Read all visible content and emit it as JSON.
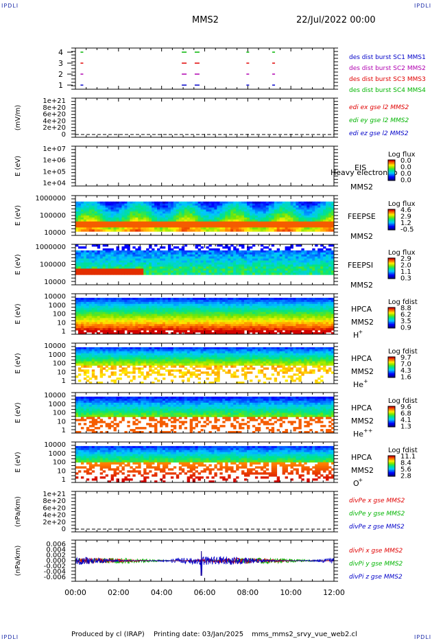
{
  "header": {
    "corner_tl": "IPDLI",
    "corner_tr": "IPDLI",
    "corner_bl": "IPDLI",
    "corner_br": "IPDLI",
    "spacecraft": "MMS2",
    "date": "22/Jul/2022 00:00"
  },
  "footer": {
    "producer": "Produced by cl (IRAP)",
    "printing_date": "Printing date: 03/Jan/2025",
    "filename": "mms_mms2_srvy_vue_web2.cl"
  },
  "colors": {
    "red": "#e00000",
    "green": "#00b400",
    "blue": "#0000c8",
    "magenta": "#b000b0",
    "label_blue": "#1020a0"
  },
  "chart_data": [
    {
      "type": "scatter",
      "panel": "burst",
      "yticks": [
        "4",
        "3",
        "2",
        "1"
      ],
      "legend": [
        {
          "label": "des dist burst SC1 MMS1",
          "color": "#0000c8"
        },
        {
          "label": "des dist burst SC2 MMS2",
          "color": "#b000b0"
        },
        {
          "label": "des dist burst SC3 MMS3",
          "color": "#e00000"
        },
        {
          "label": "des dist burst SC4 MMS4",
          "color": "#00b400"
        }
      ],
      "series": [
        {
          "level": 4,
          "color": "#00b400",
          "x_hours": [
            0.3,
            5.0,
            5.6,
            8.0,
            9.2
          ]
        },
        {
          "level": 3,
          "color": "#e00000",
          "x_hours": [
            0.3,
            5.0,
            5.6,
            8.0,
            9.2
          ]
        },
        {
          "level": 2,
          "color": "#b000b0",
          "x_hours": [
            0.3,
            5.0,
            5.6,
            8.0,
            9.2
          ]
        },
        {
          "level": 1,
          "color": "#0000c8",
          "x_hours": [
            0.3,
            5.0,
            5.6,
            8.0,
            9.2
          ]
        }
      ]
    },
    {
      "type": "line",
      "panel": "edi",
      "ylabel": "(mV/m)",
      "yticks": [
        "1e+21",
        "8e+20",
        "6e+20",
        "4e+20",
        "2e+20",
        "0"
      ],
      "legend": [
        {
          "label": "edi ex gse l2 MMS2",
          "color": "#e00000"
        },
        {
          "label": "edi ey gse l2 MMS2",
          "color": "#00b400"
        },
        {
          "label": "edi ez gse l2 MMS2",
          "color": "#0000c8"
        }
      ],
      "zero_line": true
    },
    {
      "type": "heatmap",
      "panel": "eis",
      "ylabel": "E (eV)",
      "yticks": [
        "1e+07",
        "1e+06",
        "1e+05",
        "1e+04"
      ],
      "instrument": "EIS",
      "overlay": "Heavy electron to",
      "spacecraft": "MMS2",
      "colorbar_title": "Log flux",
      "colorbar_ticks": [
        "0.0",
        "0.0",
        "0.0",
        "0.0"
      ]
    },
    {
      "type": "heatmap",
      "panel": "feeps_e",
      "ylabel": "E (eV)",
      "yticks": [
        "1000000",
        "100000",
        "10000"
      ],
      "instrument": "FEEPSE",
      "spacecraft": "MMS2",
      "colorbar_title": "Log flux",
      "colorbar_ticks": [
        "4.6",
        "2.9",
        "1.2",
        "-0.5"
      ]
    },
    {
      "type": "heatmap",
      "panel": "feeps_i",
      "ylabel": "E (eV)",
      "yticks": [
        "1000000",
        "100000",
        "10000"
      ],
      "instrument": "FEEPSI",
      "spacecraft": "MMS2",
      "colorbar_title": "Log flux",
      "colorbar_ticks": [
        "2.9",
        "2.0",
        "1.1",
        "0.3"
      ]
    },
    {
      "type": "heatmap",
      "panel": "hpca_h",
      "ylabel": "E (eV)",
      "yticks": [
        "10000",
        "1000",
        "100",
        "10",
        "1"
      ],
      "instrument": "HPCA",
      "spacecraft": "MMS2",
      "species": "H",
      "charge": "+",
      "colorbar_title": "Log fdist",
      "colorbar_ticks": [
        "8.8",
        "6.2",
        "3.5",
        "0.9"
      ]
    },
    {
      "type": "heatmap",
      "panel": "hpca_he",
      "ylabel": "E (eV)",
      "yticks": [
        "10000",
        "1000",
        "100",
        "10",
        "1"
      ],
      "instrument": "HPCA",
      "spacecraft": "MMS2",
      "species": "He",
      "charge": "+",
      "colorbar_title": "Log fdist",
      "colorbar_ticks": [
        "9.7",
        "7.0",
        "4.3",
        "1.6"
      ]
    },
    {
      "type": "heatmap",
      "panel": "hpca_hepp",
      "ylabel": "E (eV)",
      "yticks": [
        "10000",
        "1000",
        "100",
        "10",
        "1"
      ],
      "instrument": "HPCA",
      "spacecraft": "MMS2",
      "species": "He",
      "charge": "++",
      "colorbar_title": "Log fdist",
      "colorbar_ticks": [
        "9.6",
        "6.8",
        "4.1",
        "1.3"
      ]
    },
    {
      "type": "heatmap",
      "panel": "hpca_o",
      "ylabel": "E (eV)",
      "yticks": [
        "10000",
        "1000",
        "100",
        "10",
        "1"
      ],
      "instrument": "HPCA",
      "spacecraft": "MMS2",
      "species": "O",
      "charge": "+",
      "colorbar_title": "Log fdist",
      "colorbar_ticks": [
        "11.1",
        "8.4",
        "5.6",
        "2.8"
      ]
    },
    {
      "type": "line",
      "panel": "divpe",
      "ylabel": "(nPa/km)",
      "yticks": [
        "1e+21",
        "8e+20",
        "6e+20",
        "4e+20",
        "2e+20",
        "0"
      ],
      "legend": [
        {
          "label": "divPe x gse MMS2",
          "color": "#e00000"
        },
        {
          "label": "divPe y gse MMS2",
          "color": "#00b400"
        },
        {
          "label": "divPe z gse MMS2",
          "color": "#0000c8"
        }
      ],
      "zero_line": true
    },
    {
      "type": "line",
      "panel": "divpi",
      "ylabel": "(nPa/km)",
      "yticks": [
        "0.006",
        "0.004",
        "0.002",
        "0.000",
        "-0.002",
        "-0.004",
        "-0.006"
      ],
      "ylim": [
        -0.0075,
        0.0075
      ],
      "legend": [
        {
          "label": "divPi x gse MMS2",
          "color": "#e00000"
        },
        {
          "label": "divPi y gse MMS2",
          "color": "#00b400"
        },
        {
          "label": "divPi z gse MMS2",
          "color": "#0000c8"
        }
      ],
      "spike_hour": 5.85,
      "spike_low": -0.0055,
      "spike_high": 0.0035,
      "noise_amplitude": 0.0013
    }
  ],
  "xaxis": {
    "range_hours": [
      0,
      12
    ],
    "ticks": [
      "00:00",
      "02:00",
      "04:00",
      "06:00",
      "08:00",
      "10:00",
      "12:00"
    ]
  }
}
